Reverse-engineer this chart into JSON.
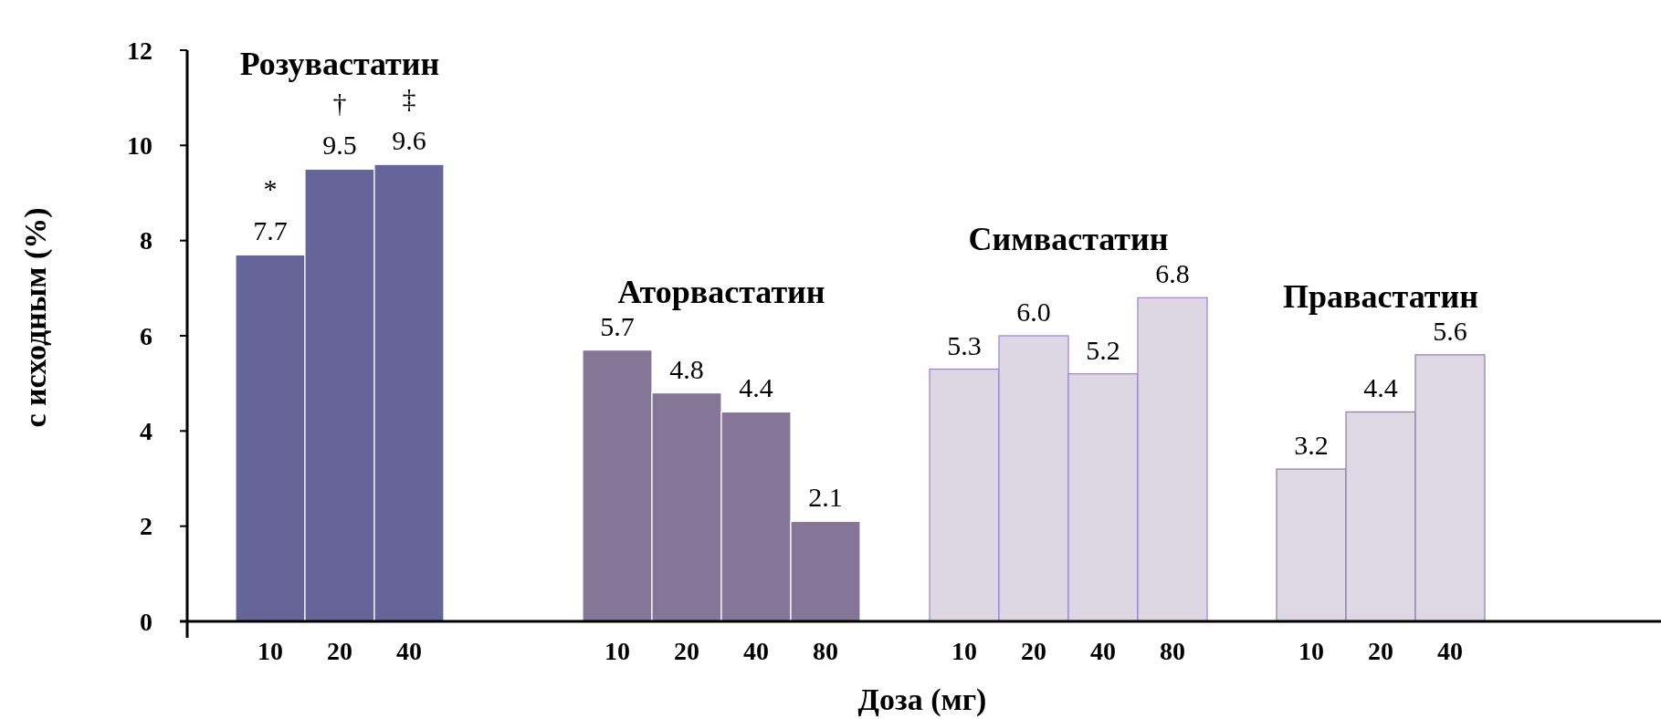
{
  "chart_data": {
    "type": "bar",
    "categories": [
      "10",
      "20",
      "40",
      null,
      null,
      "10",
      "20",
      "40",
      "80",
      null,
      "10",
      "20",
      "40",
      "80",
      null,
      "10",
      "20",
      "40"
    ],
    "series": [
      {
        "name": "Розувастатин",
        "color": "#65659a",
        "values": [
          7.7,
          9.5,
          9.6,
          null,
          null,
          null,
          null,
          null,
          null,
          null,
          null,
          null,
          null,
          null,
          null,
          null,
          null,
          null
        ],
        "value_labels": [
          "7.7",
          "9.5",
          "9.6",
          null,
          null,
          null,
          null,
          null,
          null,
          null,
          null,
          null,
          null,
          null,
          null,
          null,
          null,
          null
        ]
      },
      {
        "name": "Аторвастатин",
        "color": "#857596",
        "values": [
          null,
          null,
          null,
          null,
          null,
          5.7,
          4.8,
          4.4,
          2.1,
          null,
          null,
          null,
          null,
          null,
          null,
          null,
          null,
          null
        ],
        "value_labels": [
          null,
          null,
          null,
          null,
          null,
          "5.7",
          "4.8",
          "4.4",
          "2.1",
          null,
          null,
          null,
          null,
          null,
          null,
          null,
          null,
          null
        ]
      },
      {
        "name": "Симвастатин",
        "color": "#dcd7e3",
        "values": [
          null,
          null,
          null,
          null,
          null,
          null,
          null,
          null,
          null,
          null,
          5.3,
          6.0,
          5.2,
          6.8,
          null,
          null,
          null,
          null
        ],
        "value_labels": [
          null,
          null,
          null,
          null,
          null,
          null,
          null,
          null,
          null,
          null,
          "5.3",
          "6.0",
          "5.2",
          "6.8",
          null,
          null,
          null,
          null
        ]
      },
      {
        "name": "Правастатин",
        "color": "#ddd8e4",
        "values": [
          null,
          null,
          null,
          null,
          null,
          null,
          null,
          null,
          null,
          null,
          null,
          null,
          null,
          null,
          null,
          3.2,
          4.4,
          5.6
        ],
        "value_labels": [
          null,
          null,
          null,
          null,
          null,
          null,
          null,
          null,
          null,
          null,
          null,
          null,
          null,
          null,
          null,
          "3.2",
          "4.4",
          "5.6"
        ]
      }
    ],
    "ylim": [
      0,
      12
    ],
    "yticks": [
      0,
      2,
      4,
      6,
      8,
      10,
      12
    ],
    "grid": false,
    "xlabel": "Доза (мг)",
    "ylabel": "с исходным (%)",
    "annotations": [
      {
        "text": "*",
        "x": "10",
        "y": 7.7
      },
      {
        "text": "†",
        "x": "20",
        "y": 9.5
      },
      {
        "text": "‡",
        "x": "40",
        "y": 9.6
      }
    ]
  }
}
